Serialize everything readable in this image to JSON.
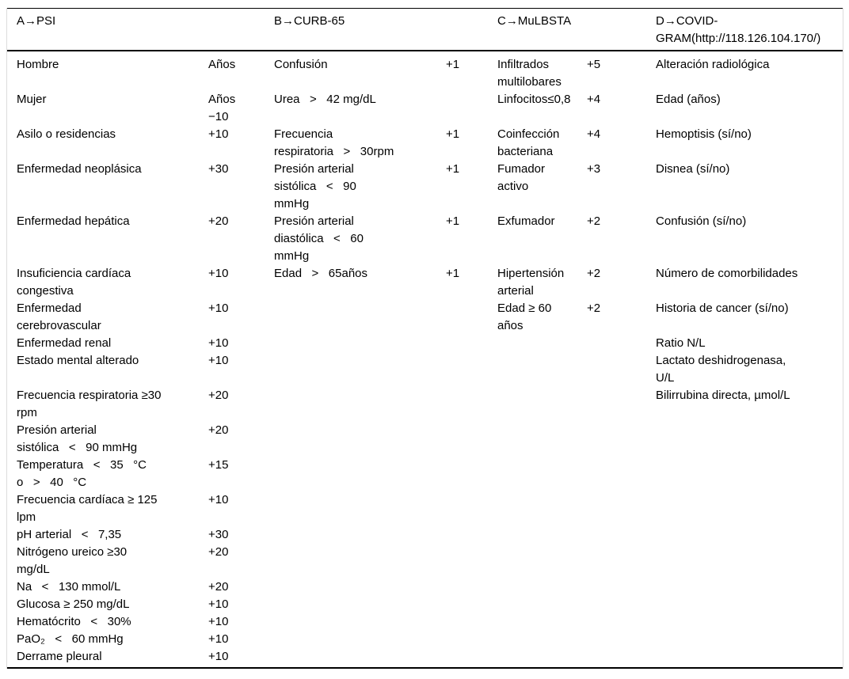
{
  "document": {
    "background": "#ffffff",
    "rule_color": "#000000",
    "side_border_color": "#dcdcdc",
    "text_color": "#000000"
  },
  "table": {
    "headers": [
      "A→PSI",
      "B→CURB-65",
      "C→MuLBSTA",
      "D→COVID-GRAM(http://118.126.104.170/)"
    ],
    "column_names": [
      "psi-item",
      "psi-points",
      "curb65-item",
      "curb65-points",
      "mulbsta-item",
      "mulbsta-points",
      "covidgram-item"
    ],
    "rows": [
      [
        "Hombre",
        "Años",
        "Confusión",
        "+1",
        "Infiltrados\nmultilobares",
        "+5",
        "Alteración radiológica"
      ],
      [
        "Mujer",
        "Años\n−10",
        "Urea   >   42 mg/dL",
        "",
        "Linfocitos≤0,8",
        "+4",
        "Edad (años)"
      ],
      [
        "Asilo o residencias",
        "+10",
        "Frecuencia\nrespiratoria   >   30rpm",
        "+1",
        "Coinfección\nbacteriana",
        "+4",
        "Hemoptisis (sí/no)"
      ],
      [
        "Enfermedad neoplásica",
        "+30",
        "Presión arterial\nsistólica   <   90\nmmHg",
        "+1",
        "Fumador\nactivo",
        "+3",
        "Disnea (sí/no)"
      ],
      [
        "Enfermedad hepática",
        "+20",
        "Presión arterial\ndiastólica   <   60\nmmHg",
        "+1",
        "Exfumador",
        "+2",
        "Confusión (sí/no)"
      ],
      [
        "Insuficiencia cardíaca\ncongestiva",
        "+10",
        "Edad   >   65años",
        "+1",
        "Hipertensión\narterial",
        "+2",
        "Número de comorbilidades"
      ],
      [
        "Enfermedad\ncerebrovascular",
        "+10",
        "",
        "",
        "Edad ≥ 60\naños",
        "+2",
        "Historia de cancer (sí/no)"
      ],
      [
        "Enfermedad renal",
        "+10",
        "",
        "",
        "",
        "",
        "Ratio N/L"
      ],
      [
        "Estado mental alterado",
        "+10",
        "",
        "",
        "",
        "",
        "Lactato deshidrogenasa,\nU/L"
      ],
      [
        "Frecuencia respiratoria ≥30\nrpm",
        "+20",
        "",
        "",
        "",
        "",
        "Bilirrubina directa, µmol/L"
      ],
      [
        "Presión arterial\nsistólica   <   90 mmHg",
        "+20",
        "",
        "",
        "",
        "",
        ""
      ],
      [
        "Temperatura   <   35   °C\no   >   40   °C",
        "+15",
        "",
        "",
        "",
        "",
        ""
      ],
      [
        "Frecuencia cardíaca ≥ 125\nlpm",
        "+10",
        "",
        "",
        "",
        "",
        ""
      ],
      [
        "pH arterial   <   7,35",
        "+30",
        "",
        "",
        "",
        "",
        ""
      ],
      [
        "Nitrógeno ureico ≥30\nmg/dL",
        "+20",
        "",
        "",
        "",
        "",
        ""
      ],
      [
        "Na   <   130 mmol/L",
        "+20",
        "",
        "",
        "",
        "",
        ""
      ],
      [
        "Glucosa ≥ 250 mg/dL",
        "+10",
        "",
        "",
        "",
        "",
        ""
      ],
      [
        "Hematócrito   <   30%",
        "+10",
        "",
        "",
        "",
        "",
        ""
      ],
      [
        "PaO₂   <   60 mmHg",
        "+10",
        "",
        "",
        "",
        "",
        ""
      ],
      [
        "Derrame pleural",
        "+10",
        "",
        "",
        "",
        "",
        ""
      ]
    ]
  }
}
